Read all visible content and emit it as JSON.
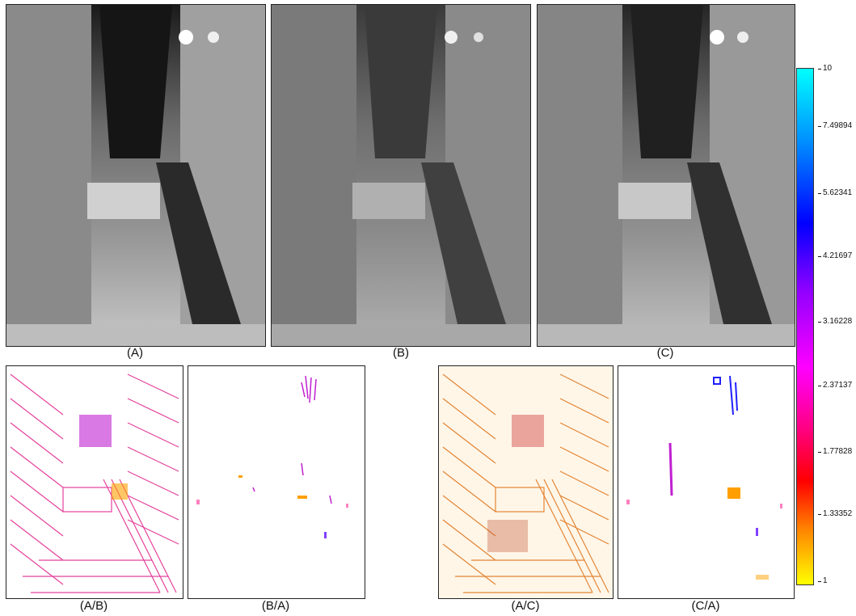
{
  "captions": {
    "a": "(A)",
    "b": "(B)",
    "c": "(C)",
    "ab": "(A/B)",
    "ba": "(B/A)",
    "ac": "(A/C)",
    "ca": "(C/A)"
  },
  "colorbar": {
    "ticks": [
      "10",
      "7.49894",
      "5.62341",
      "4.21697",
      "3.16228",
      "2.37137",
      "1.77828",
      "1.33352",
      "1"
    ],
    "colors": {
      "top": "#00ffff",
      "mid": "#ff00ff",
      "bottom": "#ffff00"
    }
  }
}
